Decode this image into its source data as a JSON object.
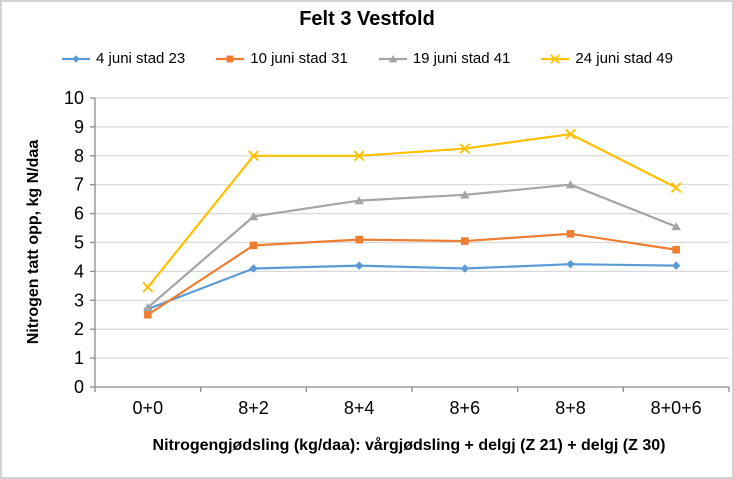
{
  "chart_data": {
    "type": "line",
    "title": "Felt 3 Vestfold",
    "xlabel": "Nitrogengjødsling (kg/daa): vårgjødsling + delgj (Z 21) + delgj (Z 30)",
    "ylabel": "Nitrogen tatt opp, kg N/daa",
    "categories": [
      "0+0",
      "8+2",
      "8+4",
      "8+6",
      "8+8",
      "8+0+6"
    ],
    "series": [
      {
        "name": "4 juni stad 23",
        "color": "#5B9BD5",
        "marker": "diamond",
        "values": [
          2.7,
          4.1,
          4.2,
          4.1,
          4.25,
          4.2
        ]
      },
      {
        "name": "10 juni stad 31",
        "color": "#ED7D31",
        "marker": "square",
        "values": [
          2.5,
          4.9,
          5.1,
          5.05,
          5.3,
          4.75
        ]
      },
      {
        "name": "19 juni stad 41",
        "color": "#A5A5A5",
        "marker": "triangle",
        "values": [
          2.75,
          5.9,
          6.45,
          6.65,
          7.0,
          5.55
        ]
      },
      {
        "name": "24 juni stad 49",
        "color": "#FFC000",
        "marker": "x",
        "values": [
          3.45,
          8.0,
          8.0,
          8.25,
          8.75,
          6.9
        ]
      }
    ],
    "ylim": [
      0,
      10
    ],
    "ytick_step": 1,
    "grid": "horizontal",
    "legend_position": "top",
    "gridline_color": "#D9D9D9",
    "axis_color": "#8C8C8C",
    "text_color": "#000000"
  }
}
